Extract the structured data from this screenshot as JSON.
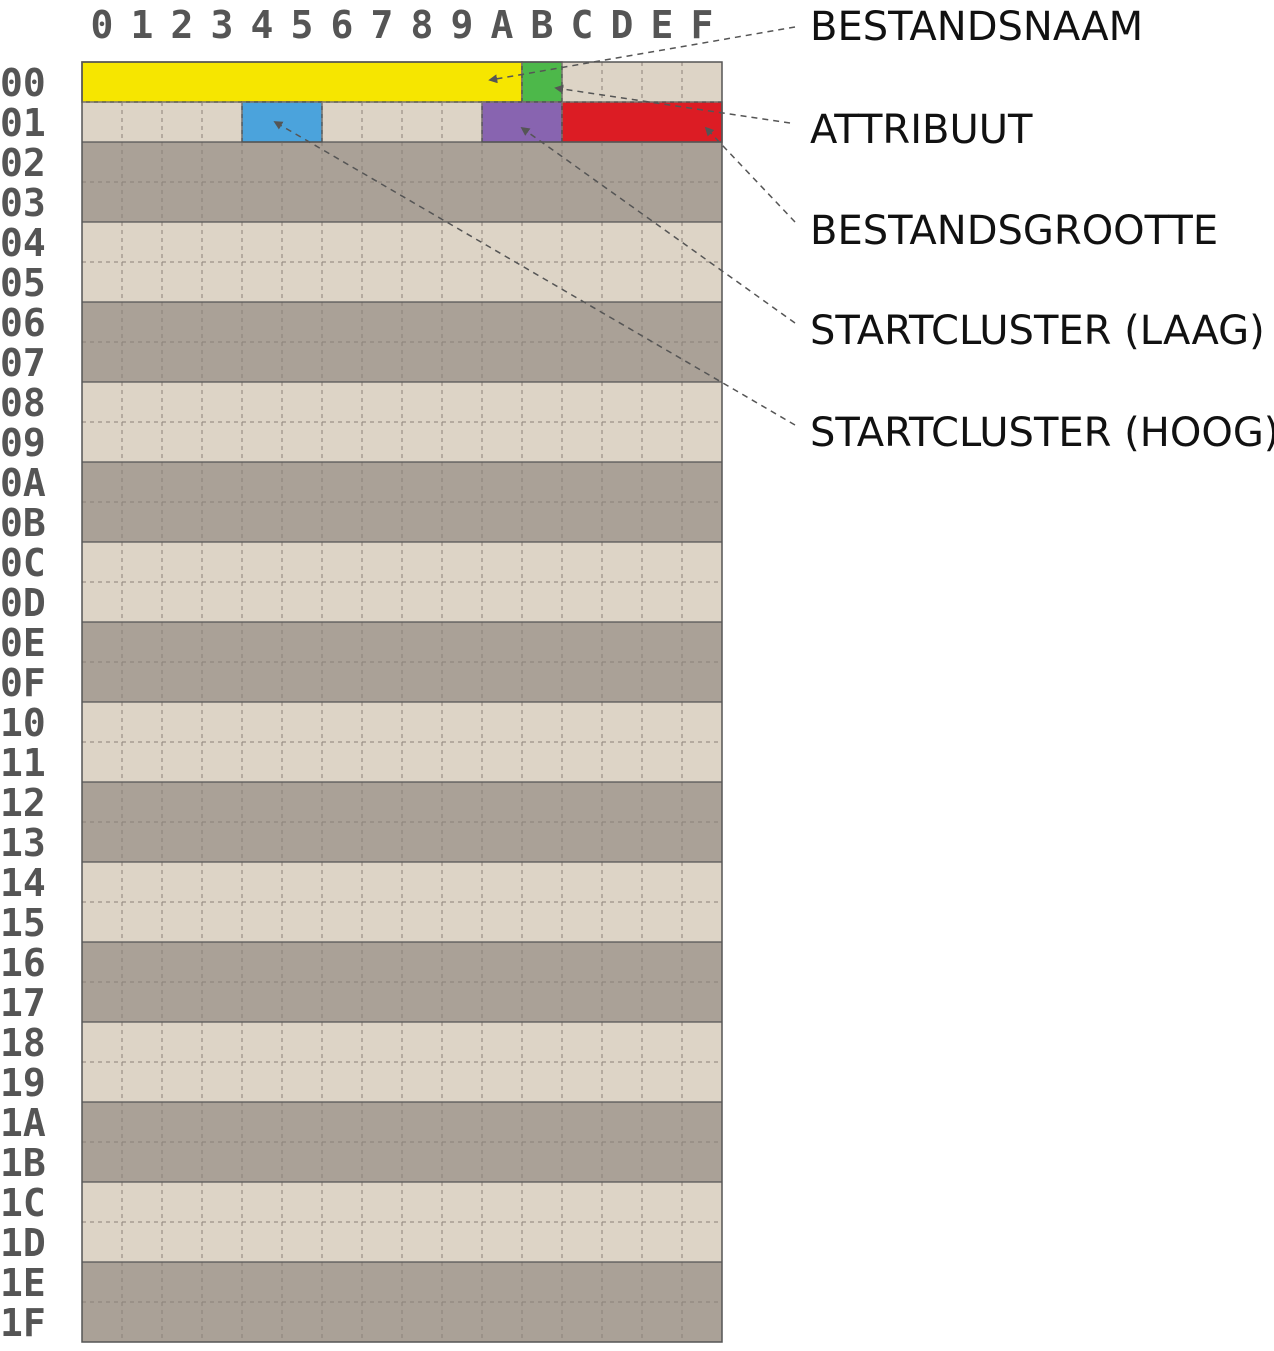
{
  "columns": [
    "0",
    "1",
    "2",
    "3",
    "4",
    "5",
    "6",
    "7",
    "8",
    "9",
    "A",
    "B",
    "C",
    "D",
    "E",
    "F"
  ],
  "rows": [
    "00",
    "01",
    "02",
    "03",
    "04",
    "05",
    "06",
    "07",
    "08",
    "09",
    "0A",
    "0B",
    "0C",
    "0D",
    "0E",
    "0F",
    "10",
    "11",
    "12",
    "13",
    "14",
    "15",
    "16",
    "17",
    "18",
    "19",
    "1A",
    "1B",
    "1C",
    "1D",
    "1E",
    "1F"
  ],
  "colors": {
    "light_band": "#ddd4c6",
    "dark_band": "#aaa197",
    "grid_line": "#8a8178",
    "outline": "#555555",
    "arrow": "#555555"
  },
  "fields": [
    {
      "id": "filename",
      "label": "BESTANDSNAAM",
      "row": 0,
      "start": 0,
      "end": 10,
      "color": "#f6e600"
    },
    {
      "id": "attribute",
      "label": "ATTRIBUUT",
      "row": 0,
      "start": 11,
      "end": 11,
      "color": "#4db84a"
    },
    {
      "id": "start-cluster-high",
      "label": "STARTCLUSTER (HOOG)",
      "row": 1,
      "start": 4,
      "end": 5,
      "color": "#4ba3dc"
    },
    {
      "id": "start-cluster-low",
      "label": "STARTCLUSTER (LAAG)",
      "row": 1,
      "start": 10,
      "end": 11,
      "color": "#8864b0"
    },
    {
      "id": "file-size",
      "label": "BESTANDSGROOTTE",
      "row": 1,
      "start": 12,
      "end": 15,
      "color": "#dc1c24"
    }
  ],
  "callout_order": [
    "filename",
    "attribute",
    "file-size",
    "start-cluster-low",
    "start-cluster-high"
  ]
}
